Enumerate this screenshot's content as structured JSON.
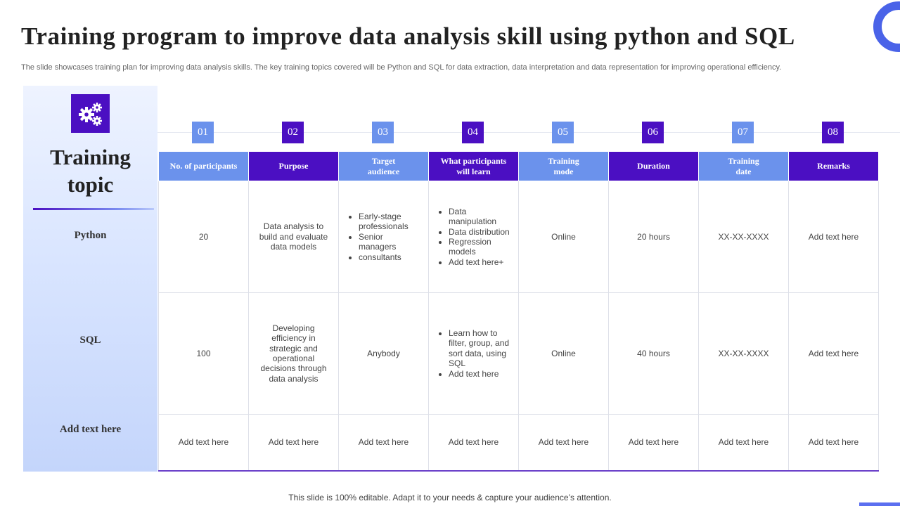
{
  "page": {
    "title": "Training program to improve data analysis skill using python and SQL",
    "subtitle": "The slide showcases training plan for improving data analysis skills. The key training topics covered will be Python and SQL for data extraction, data interpretation and data representation for improving operational efficiency.",
    "footer": "This slide is 100% editable. Adapt it to your needs & capture your audience’s attention."
  },
  "colors": {
    "accent_purple": "#4b0fc2",
    "accent_blue": "#6b92ec"
  },
  "topic_panel": {
    "icon": "gears-icon",
    "heading_line1": "Training",
    "heading_line2": "topic",
    "rows": [
      "Python",
      "SQL",
      "Add text here"
    ]
  },
  "columns": [
    {
      "number": "01",
      "header": "No. of participants",
      "style": "blue"
    },
    {
      "number": "02",
      "header": "Purpose",
      "style": "purple"
    },
    {
      "number": "03",
      "header": "Target\naudience",
      "style": "blue"
    },
    {
      "number": "04",
      "header": "What participants\nwill learn",
      "style": "purple"
    },
    {
      "number": "05",
      "header": "Training\nmode",
      "style": "blue"
    },
    {
      "number": "06",
      "header": "Duration",
      "style": "purple"
    },
    {
      "number": "07",
      "header": "Training\ndate",
      "style": "blue"
    },
    {
      "number": "08",
      "header": "Remarks",
      "style": "purple"
    }
  ],
  "rows": [
    {
      "participants": "20",
      "purpose": "Data analysis to build and evaluate data models",
      "audience": [
        "Early-stage professionals",
        "Senior managers",
        "consultants"
      ],
      "learn": [
        "Data manipulation",
        "Data distribution",
        "Regression models",
        "Add text here+"
      ],
      "mode": "Online",
      "duration": "20 hours",
      "date": "XX-XX-XXXX",
      "remarks": "Add text here"
    },
    {
      "participants": "100",
      "purpose": "Developing efficiency in strategic and operational decisions through data analysis",
      "audience_text": "Anybody",
      "learn": [
        "Learn how to filter, group, and sort data, using SQL",
        "Add text here"
      ],
      "mode": "Online",
      "duration": "40 hours",
      "date": "XX-XX-XXXX",
      "remarks": "Add text here"
    },
    {
      "participants": "Add text here",
      "purpose": "Add text here",
      "audience_text": "Add text here",
      "learn_text": "Add text here",
      "mode": "Add text here",
      "duration": "Add text here",
      "date": "Add text here",
      "remarks": "Add text here"
    }
  ]
}
